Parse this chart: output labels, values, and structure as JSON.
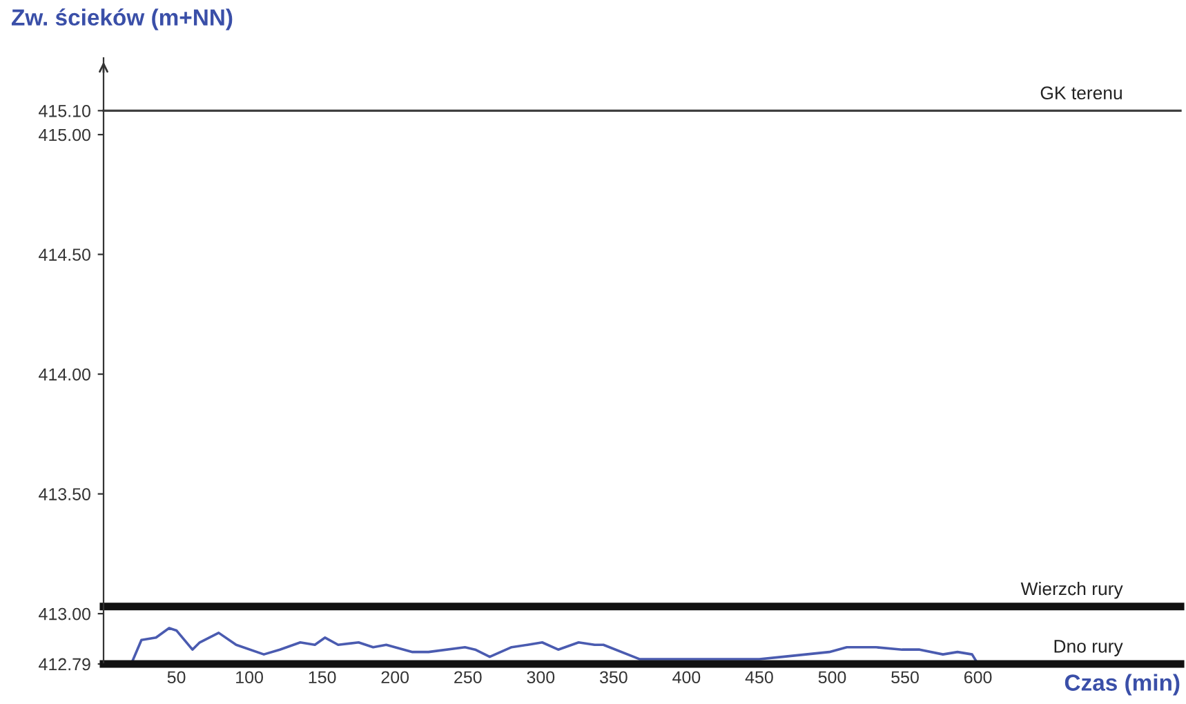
{
  "chart_data": {
    "type": "line",
    "ylabel": "Zw. ścieków (m+NN)",
    "xlabel": "Czas (min)",
    "series": [
      {
        "color": "#4a5bb0",
        "x": [
          0,
          19,
          26,
          36,
          45,
          50,
          61,
          66,
          79,
          91,
          110,
          121,
          135,
          145,
          152,
          161,
          175,
          185,
          194,
          212,
          223,
          248,
          255,
          265,
          280,
          291,
          301,
          312,
          326,
          337,
          343,
          368,
          450,
          466,
          498,
          510,
          530,
          548,
          560,
          576,
          586,
          596,
          600
        ],
        "values": [
          412.79,
          412.79,
          412.89,
          412.9,
          412.94,
          412.93,
          412.85,
          412.88,
          412.92,
          412.87,
          412.83,
          412.85,
          412.88,
          412.87,
          412.9,
          412.87,
          412.88,
          412.86,
          412.87,
          412.84,
          412.84,
          412.86,
          412.85,
          412.82,
          412.86,
          412.87,
          412.88,
          412.85,
          412.88,
          412.87,
          412.87,
          412.81,
          412.81,
          412.82,
          412.84,
          412.86,
          412.86,
          412.85,
          412.85,
          412.83,
          412.84,
          412.83,
          412.79
        ]
      }
    ],
    "xlim": [
      0,
      739
    ],
    "xticks": [
      50,
      100,
      150,
      200,
      250,
      300,
      350,
      400,
      450,
      500,
      550,
      600
    ],
    "ylim": [
      412.79,
      415.32
    ],
    "yticks": [
      {
        "value": 412.79,
        "label": "412.79"
      },
      {
        "value": 413.0,
        "label": "413.00"
      },
      {
        "value": 413.5,
        "label": "413.50"
      },
      {
        "value": 414.0,
        "label": "414.00"
      },
      {
        "value": 414.5,
        "label": "414.50"
      },
      {
        "value": 415.0,
        "label": "415.00"
      },
      {
        "value": 415.1,
        "label": "415.10"
      }
    ],
    "ref_lines": [
      {
        "axis": "y",
        "value": 415.1,
        "label": "GK terenu",
        "color": "#404040"
      },
      {
        "axis": "y",
        "value": 413.03,
        "label": "Wierzch rury",
        "color": "#111111"
      },
      {
        "axis": "y",
        "value": 412.79,
        "label": "Dno rury",
        "color": "#111111"
      }
    ],
    "grid": false,
    "legend": false
  }
}
